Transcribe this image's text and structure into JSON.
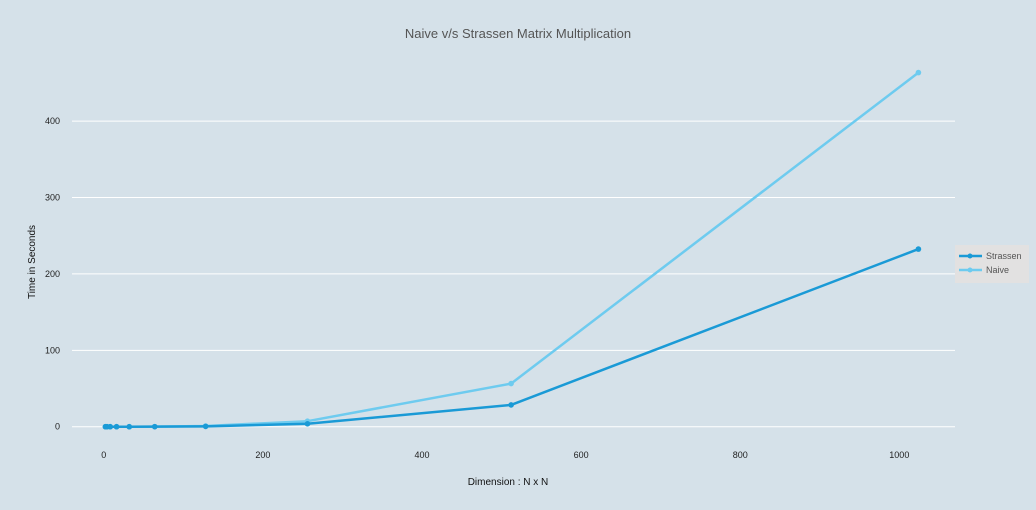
{
  "chart_data": {
    "type": "line",
    "title": "Naive v/s Strassen Matrix Multiplication",
    "xlabel": "Dimension : N x N",
    "ylabel": "Time in Seconds",
    "xlim": [
      -40,
      1070
    ],
    "ylim": [
      -20,
      480
    ],
    "x_ticks": [
      0,
      200,
      400,
      600,
      800,
      1000
    ],
    "y_ticks": [
      0,
      100,
      200,
      300,
      400
    ],
    "grid": "horizontal",
    "legend_position": "right",
    "series": [
      {
        "name": "Strassen",
        "color": "#1a9ad6",
        "x": [
          2,
          4,
          8,
          16,
          32,
          64,
          128,
          256,
          512,
          1024
        ],
        "y": [
          0,
          0,
          0,
          0,
          0,
          0.1,
          0.4,
          3.8,
          28.5,
          232.5
        ]
      },
      {
        "name": "Naive",
        "color": "#6ecbef",
        "x": [
          2,
          4,
          8,
          16,
          32,
          64,
          128,
          256,
          512,
          1024
        ],
        "y": [
          0,
          0,
          0,
          0,
          0,
          0.1,
          0.9,
          7.2,
          56.5,
          463.5
        ]
      }
    ]
  }
}
